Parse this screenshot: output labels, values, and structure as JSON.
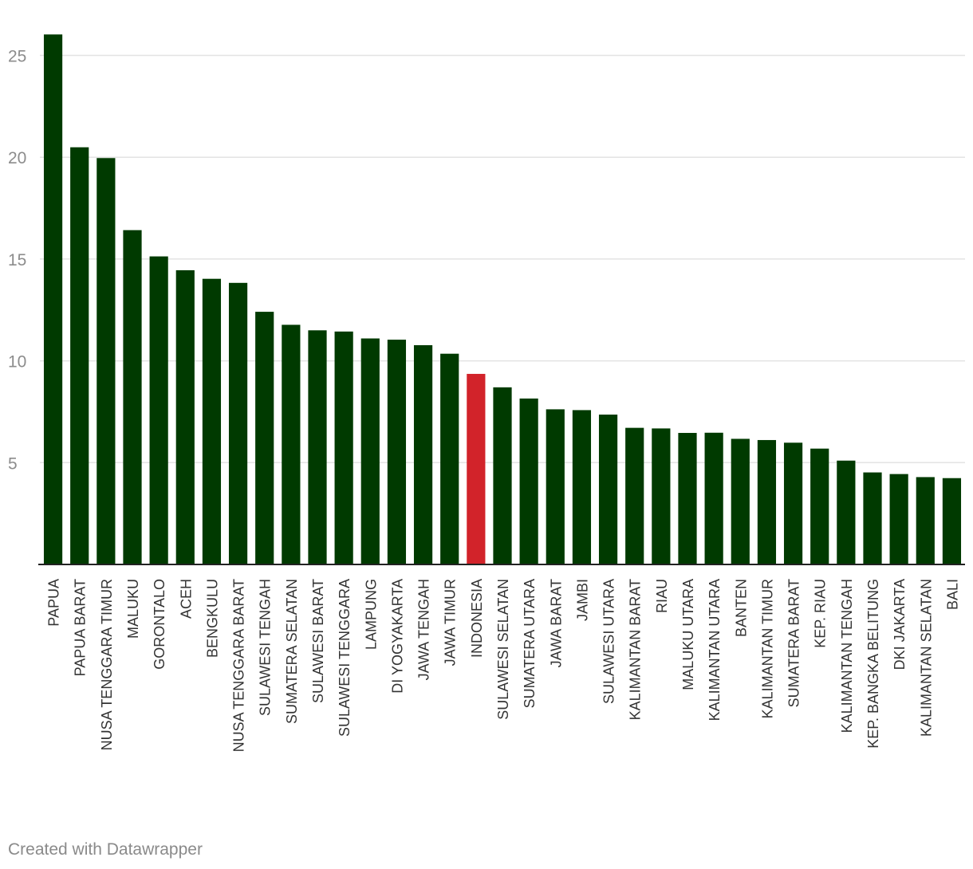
{
  "chart_data": {
    "type": "bar",
    "title": "",
    "xlabel": "",
    "ylabel": "",
    "ylim": [
      0,
      26
    ],
    "yticks": [
      5,
      10,
      15,
      20,
      25
    ],
    "grid": true,
    "categories": [
      "PAPUA",
      "PAPUA BARAT",
      "NUSA TENGGARA TIMUR",
      "MALUKU",
      "GORONTALO",
      "ACEH",
      "BENGKULU",
      "NUSA TENGGARA BARAT",
      "SULAWESI TENGAH",
      "SUMATERA SELATAN",
      "SULAWESI BARAT",
      "SULAWESI TENGGARA",
      "LAMPUNG",
      "DI YOGYAKARTA",
      "JAWA TENGAH",
      "JAWA TIMUR",
      "INDONESIA",
      "SULAWESI SELATAN",
      "SUMATERA UTARA",
      "JAWA BARAT",
      "JAMBI",
      "SULAWESI UTARA",
      "KALIMANTAN BARAT",
      "RIAU",
      "MALUKU UTARA",
      "KALIMANTAN UTARA",
      "BANTEN",
      "KALIMANTAN TIMUR",
      "SUMATERA BARAT",
      "KEP. RIAU",
      "KALIMANTAN TENGAH",
      "KEP. BANGKA BELITUNG",
      "DKI JAKARTA",
      "KALIMANTAN SELATAN",
      "BALI"
    ],
    "values": [
      26.03,
      20.49,
      19.96,
      16.42,
      15.13,
      14.45,
      14.03,
      13.83,
      12.41,
      11.77,
      11.5,
      11.44,
      11.1,
      11.04,
      10.77,
      10.35,
      9.36,
      8.7,
      8.15,
      7.62,
      7.58,
      7.36,
      6.71,
      6.68,
      6.46,
      6.47,
      6.17,
      6.11,
      5.98,
      5.69,
      5.1,
      4.52,
      4.44,
      4.29,
      4.24
    ],
    "highlight_category": "INDONESIA",
    "colors": {
      "bar": "#003a00",
      "highlight": "#d2232a",
      "grid": "#e3e3e3",
      "axis": "#222222",
      "tick_text": "#8c8c8c",
      "label_text": "#333333"
    }
  },
  "footer": {
    "credit": "Created with Datawrapper"
  }
}
